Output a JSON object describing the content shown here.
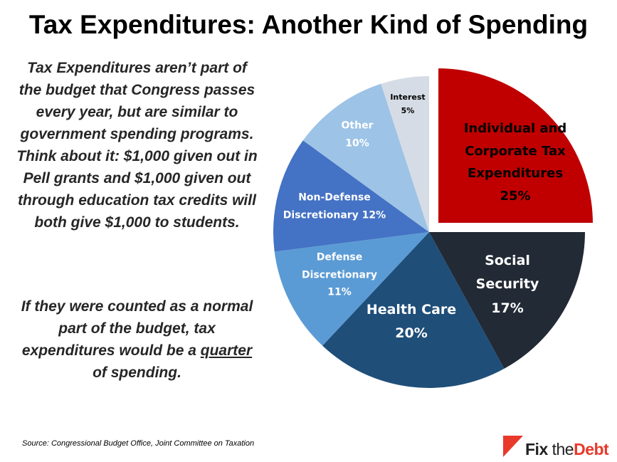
{
  "title": "Tax Expenditures: Another Kind of Spending",
  "paragraph1": "Tax Expenditures aren’t part of the budget that Congress passes every year, but are similar to government spending programs. Think about it: $1,000 given out in Pell grants and $1,000 given out through education tax credits will both give $1,000 to students.",
  "paragraph2": {
    "before": "If they were counted as a normal part of the budget, tax expenditures would be a ",
    "emph": "quarter",
    "after": " of spending."
  },
  "source": "Source: Congressional Budget Office, Joint Committee on Taxation",
  "logo": {
    "fix": "Fix",
    "the": "the",
    "debt": "Debt",
    "accent": "#E8392B"
  },
  "chart_data": {
    "type": "pie",
    "start": "12 o'clock, clockwise",
    "exploded": "Individual and Corporate Tax Expenditures",
    "slices": [
      {
        "name": "Individual and Corporate Tax Expenditures",
        "value": 25,
        "label": "25%",
        "color": "#C00000"
      },
      {
        "name": "Social Security",
        "value": 17,
        "label": "17%",
        "color": "#222A35"
      },
      {
        "name": "Health Care",
        "value": 20,
        "label": "20%",
        "color": "#1F4E79"
      },
      {
        "name": "Defense Discretionary",
        "value": 11,
        "label": "11%",
        "color": "#5B9BD5"
      },
      {
        "name": "Non-Defense Discretionary",
        "value": 12,
        "label": "12%",
        "color": "#4472C4"
      },
      {
        "name": "Other",
        "value": 10,
        "label": "10%",
        "color": "#9DC3E6"
      },
      {
        "name": "Interest",
        "value": 5,
        "label": "5%",
        "color": "#D6DCE5"
      }
    ]
  }
}
